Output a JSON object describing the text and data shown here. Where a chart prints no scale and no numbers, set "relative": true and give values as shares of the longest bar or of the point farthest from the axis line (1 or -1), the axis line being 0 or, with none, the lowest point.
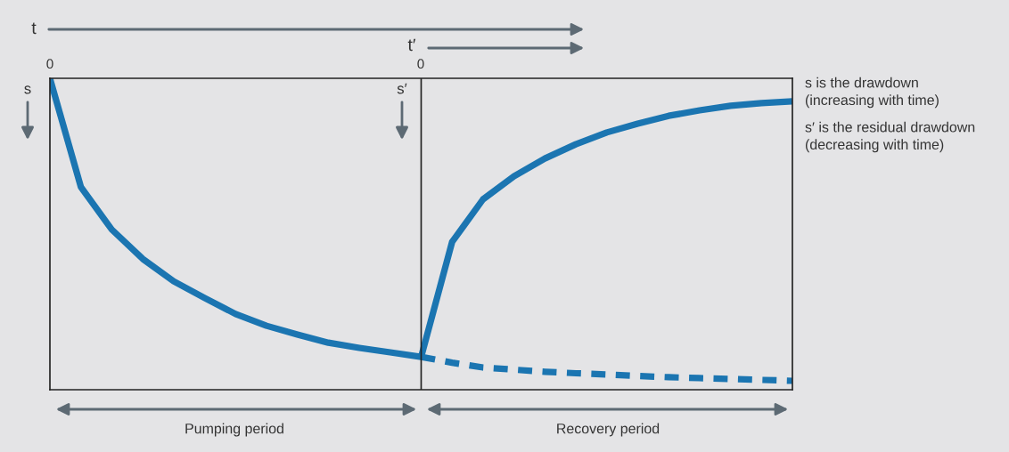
{
  "chart_data": {
    "type": "line",
    "relative": true,
    "categories": [
      null,
      null,
      null,
      null,
      null,
      null,
      null,
      null,
      null,
      null,
      null,
      null,
      null,
      null,
      null,
      null,
      null,
      null,
      null,
      null,
      null,
      null,
      null,
      null,
      null
    ],
    "series": [
      {
        "color": "#1b75b1",
        "line_style": "solid",
        "values": [
          0,
          -0.359,
          -0.5,
          -0.597,
          -0.671,
          -0.726,
          -0.779,
          -0.818,
          -0.847,
          -0.874,
          -0.891,
          -0.906,
          -0.921,
          null,
          null,
          null,
          null,
          null,
          null,
          null,
          null,
          null,
          null,
          null,
          null
        ]
      },
      {
        "color": "#1b75b1",
        "line_style": "solid",
        "values": [
          null,
          null,
          null,
          null,
          null,
          null,
          null,
          null,
          null,
          null,
          null,
          null,
          -0.921,
          -0.541,
          -0.4,
          -0.324,
          -0.265,
          -0.218,
          -0.179,
          -0.15,
          -0.124,
          -0.106,
          -0.091,
          -0.082,
          -0.076
        ]
      },
      {
        "color": "#1b75b1",
        "line_style": "dashed",
        "values": [
          null,
          null,
          null,
          null,
          null,
          null,
          null,
          null,
          null,
          null,
          null,
          null,
          -0.921,
          -0.94,
          -0.956,
          -0.963,
          -0.97,
          -0.975,
          -0.979,
          -0.984,
          -0.988,
          -0.991,
          -0.994,
          -0.997,
          -1
        ]
      }
    ],
    "annotations": [
      "t",
      "t′",
      "0",
      "0",
      "s",
      "s′",
      "Pumping period",
      "Recovery period",
      "s is the drawdown\n(increasing with time)",
      "s′ is the residual drawdown\n(decreasing with time)"
    ]
  }
}
